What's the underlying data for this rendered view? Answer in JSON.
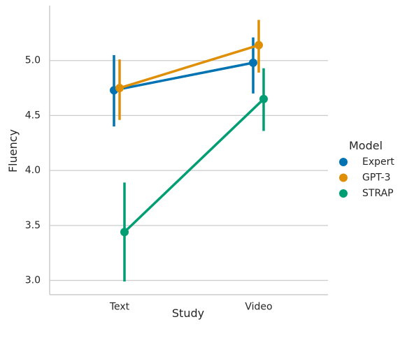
{
  "chart_data": {
    "type": "line",
    "xlabel": "Study",
    "ylabel": "Fluency",
    "categories": [
      "Text",
      "Video"
    ],
    "ylim": [
      2.87,
      5.5
    ],
    "yticks": [
      3.0,
      3.5,
      4.0,
      4.5,
      5.0
    ],
    "ytick_labels": [
      "3.0",
      "3.5",
      "4.0",
      "4.5",
      "5.0"
    ],
    "grid": "horizontal",
    "legend": {
      "title": "Model",
      "placement": "right"
    },
    "series": [
      {
        "name": "Expert",
        "color": "#0173b2",
        "values": [
          4.73,
          4.98
        ],
        "ci_low": [
          4.4,
          4.7
        ],
        "ci_high": [
          5.05,
          5.21
        ]
      },
      {
        "name": "GPT-3",
        "color": "#de8f05",
        "values": [
          4.75,
          5.14
        ],
        "ci_low": [
          4.46,
          4.89
        ],
        "ci_high": [
          5.01,
          5.37
        ]
      },
      {
        "name": "STRAP",
        "color": "#029e73",
        "values": [
          3.44,
          4.65
        ],
        "ci_low": [
          2.99,
          4.36
        ],
        "ci_high": [
          3.89,
          4.93
        ]
      }
    ]
  }
}
